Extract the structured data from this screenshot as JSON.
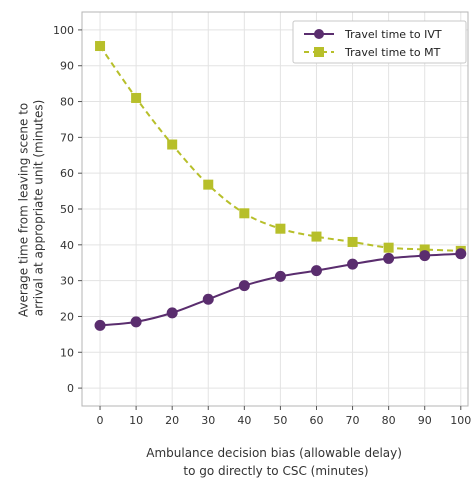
{
  "chart_data": {
    "type": "line",
    "title": "",
    "xlabel_lines": [
      "Ambulance decision bias (allowable delay)",
      "to go directly to CSC (minutes)"
    ],
    "ylabel_lines": [
      "Average time from leaving scene to",
      "arrival at appropriate unit (minutes)"
    ],
    "x": [
      0,
      10,
      20,
      30,
      40,
      50,
      60,
      70,
      80,
      90,
      100
    ],
    "xlim": [
      -5,
      102
    ],
    "ylim": [
      -5,
      105
    ],
    "xticks": [
      0,
      10,
      20,
      30,
      40,
      50,
      60,
      70,
      80,
      90,
      100
    ],
    "yticks": [
      0,
      10,
      20,
      30,
      40,
      50,
      60,
      70,
      80,
      90,
      100
    ],
    "grid": true,
    "legend_position": "top-right",
    "series": [
      {
        "name": "Travel time to IVT",
        "values": [
          17.5,
          18.5,
          21,
          24.8,
          28.6,
          31.2,
          32.8,
          34.6,
          36.2,
          37,
          37.5
        ],
        "color": "#5a2d6e",
        "marker": "circle",
        "line": "solid"
      },
      {
        "name": "Travel time to MT",
        "values": [
          95.5,
          81,
          68,
          56.8,
          48.8,
          44.5,
          42.3,
          40.8,
          39.2,
          38.7,
          38.3
        ],
        "color": "#b7bf2a",
        "marker": "square",
        "line": "dashed"
      }
    ]
  }
}
